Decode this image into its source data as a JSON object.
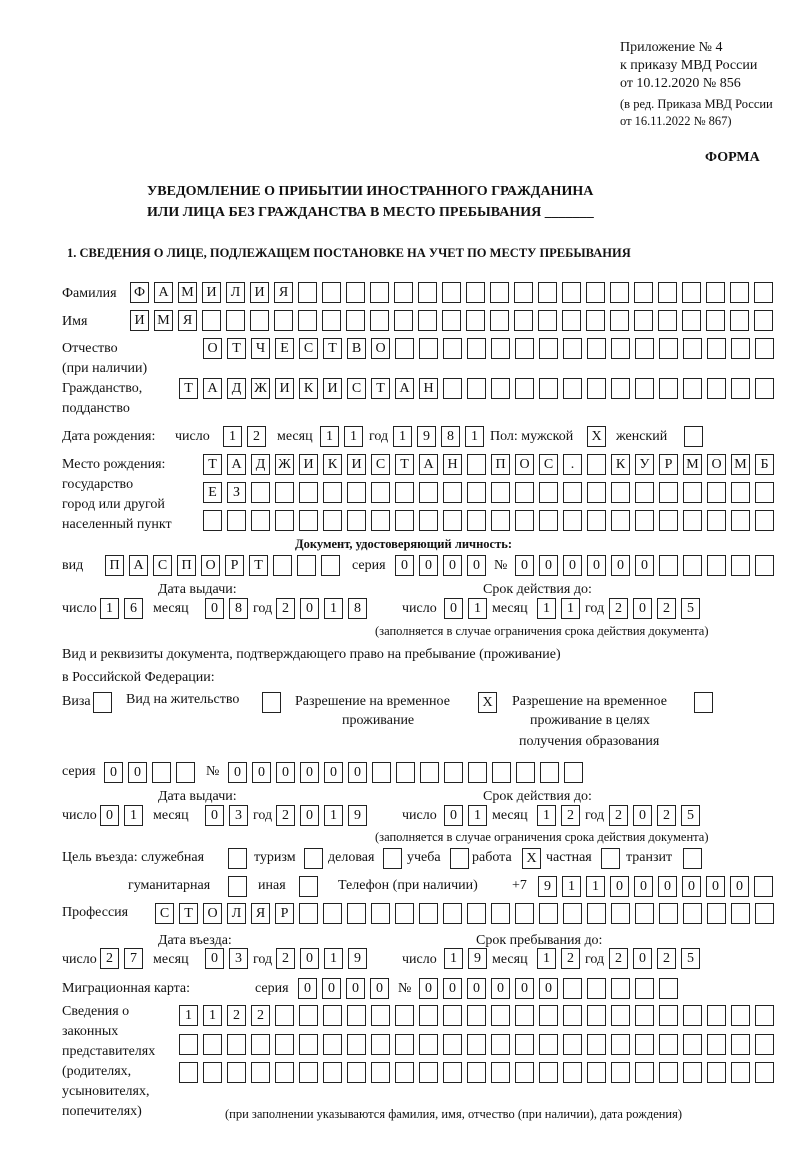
{
  "header": {
    "appendix": "Приложение № 4",
    "order": "к приказу МВД России",
    "order_date": "от 10.12.2020 № 856",
    "revision1": "(в ред. Приказа МВД России",
    "revision2": "от 16.11.2022 № 867)",
    "form_label": "ФОРМА",
    "title1": "УВЕДОМЛЕНИЕ О ПРИБЫТИИ ИНОСТРАННОГО ГРАЖДАНИНА",
    "title2": "ИЛИ ЛИЦА БЕЗ ГРАЖДАНСТВА В МЕСТО ПРЕБЫВАНИЯ _______",
    "section1": "1. СВЕДЕНИЯ О ЛИЦЕ, ПОДЛЕЖАЩЕМ ПОСТАНОВКЕ НА УЧЕТ ПО МЕСТУ ПРЕБЫВАНИЯ"
  },
  "labels": {
    "surname": "Фамилия",
    "name": "Имя",
    "patronymic": "Отчество",
    "patronymic2": "(при наличии)",
    "citizenship": "Гражданство,",
    "citizenship2": "подданство",
    "birth_date": "Дата рождения:",
    "day": "число",
    "month": "месяц",
    "year": "год",
    "sex": "Пол: мужской",
    "female": "женский",
    "birth_place1": "Место рождения:",
    "birth_place2": "государство",
    "birth_place3": "город или другой",
    "birth_place4": "населенный пункт",
    "id_doc": "Документ, удостоверяющий личность:",
    "kind": "вид",
    "series": "серия",
    "number": "№",
    "issue_date": "Дата выдачи:",
    "valid_until": "Срок действия до:",
    "valid_note": "(заполняется в случае ограничения срока действия документа)",
    "residence_doc1": "Вид и реквизиты документа, подтверждающего право на пребывание (проживание)",
    "residence_doc2": "в Российской Федерации:",
    "visa": "Виза",
    "residence_permit": "Вид на жительство",
    "temp_permit1": "Разрешение на временное",
    "temp_permit2": "проживание",
    "edu_permit1": "Разрешение на временное",
    "edu_permit2": "проживание в целях",
    "edu_permit3": "получения образования",
    "purpose": "Цель въезда: служебная",
    "tourism": "туризм",
    "business": "деловая",
    "study": "учеба",
    "work": "работа",
    "private": "частная",
    "transit": "транзит",
    "humanitarian": "гуманитарная",
    "other": "иная",
    "phone": "Телефон (при наличии)",
    "phone_prefix": "+7",
    "profession": "Профессия",
    "entry_date": "Дата въезда:",
    "stay_until": "Срок пребывания до:",
    "migration_card": "Миграционная карта:",
    "reps1": "Сведения о",
    "reps2": "законных",
    "reps3": "представителях",
    "reps4": "(родителях,",
    "reps5": "усыновителях,",
    "reps6": "попечителях)",
    "reps_note": "(при заполнении указываются фамилия, имя, отчество (при наличии), дата рождения)"
  },
  "fields": {
    "surname": "ФАМИЛИЯ",
    "name": "ИМЯ",
    "patronymic": "ОТЧЕСТВО",
    "citizenship": "ТАДЖИКИСТАН",
    "birth_day": "12",
    "birth_month": "11",
    "birth_year": "1981",
    "sex_male": "X",
    "sex_female": "",
    "birth_place_1": "ТАДЖИКИСТАН ПОС. КУРМОМБ",
    "birth_place_2": "ЕЗ",
    "birth_place_3": "",
    "id_kind": "ПАСПОРТ",
    "id_series": "0000",
    "id_number": "000000",
    "id_issue_day": "16",
    "id_issue_month": "08",
    "id_issue_year": "2018",
    "id_valid_day": "01",
    "id_valid_month": "11",
    "id_valid_year": "2025",
    "visa": "",
    "residence_permit": "",
    "temp_permit": "X",
    "edu_permit": "",
    "res_series": "00",
    "res_number": "000000",
    "res_issue_day": "01",
    "res_issue_month": "03",
    "res_issue_year": "2019",
    "res_valid_day": "01",
    "res_valid_month": "12",
    "res_valid_year": "2025",
    "purpose_official": "",
    "purpose_tourism": "",
    "purpose_business": "",
    "purpose_study": "",
    "purpose_work": "X",
    "purpose_private": "",
    "purpose_transit": "",
    "purpose_humanitarian": "",
    "purpose_other": "",
    "phone": "911000000",
    "profession": "СТОЛЯР",
    "entry_day": "27",
    "entry_month": "03",
    "entry_year": "2019",
    "stay_day": "19",
    "stay_month": "12",
    "stay_year": "2025",
    "mc_series": "0000",
    "mc_number": "000000",
    "reps_1": "1122",
    "reps_2": "",
    "reps_3": ""
  }
}
